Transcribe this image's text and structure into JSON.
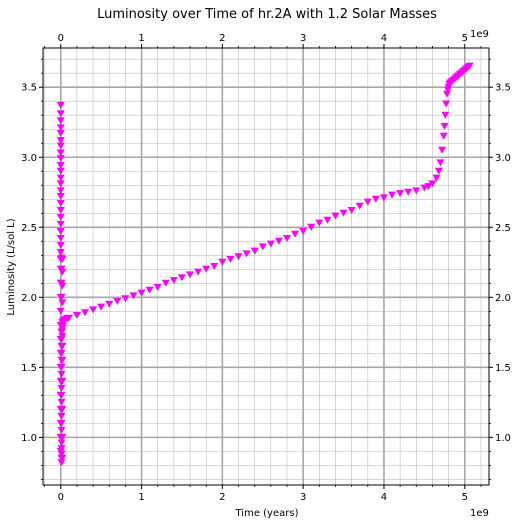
{
  "chart_data": {
    "type": "scatter",
    "title": "Luminosity over Time of hr.2A with 1.2 Solar Masses",
    "xlabel": "Time (years)",
    "ylabel": "Luminosity (L/sol L)",
    "x_offset_label": "1e9",
    "xlim": [
      -0.22,
      5.3
    ],
    "ylim": [
      0.66,
      3.78
    ],
    "x_ticks": [
      0,
      1,
      2,
      3,
      4,
      5
    ],
    "x_tick_labels": [
      "0",
      "1",
      "2",
      "3",
      "4",
      "5"
    ],
    "y_ticks": [
      1.0,
      1.5,
      2.0,
      2.5,
      3.0,
      3.5
    ],
    "y_tick_labels": [
      "1.0",
      "1.5",
      "2.0",
      "2.5",
      "3.0",
      "3.5"
    ],
    "grid": "major and minor",
    "ticks_on_all_sides": true,
    "marker": "triangle-down",
    "color": "#ff00ff",
    "series": [
      {
        "x": [
          0.0,
          0.0,
          0.0,
          0.0,
          0.0,
          0.0,
          0.0,
          0.0,
          0.0,
          0.0,
          0.0,
          0.0,
          0.0,
          0.0,
          0.0,
          0.0,
          0.0,
          0.0,
          0.0,
          0.0,
          0.0,
          0.0,
          0.0,
          0.0,
          0.0,
          0.0,
          0.0,
          0.0,
          0.0,
          0.0,
          0.0,
          0.0,
          0.0,
          0.0,
          0.0,
          0.0,
          0.0,
          0.0,
          0.01,
          0.01,
          0.01,
          0.01,
          0.01,
          0.01,
          0.01,
          0.01,
          0.01,
          0.01,
          0.01,
          0.01,
          0.01,
          0.01,
          0.01,
          0.01,
          0.01,
          0.01,
          0.01,
          0.01,
          0.01,
          0.01,
          0.01,
          0.01,
          0.01,
          0.02,
          0.02,
          0.02,
          0.02,
          0.02,
          0.02,
          0.02,
          0.02,
          0.02,
          0.02,
          0.02,
          0.02,
          0.02,
          0.02,
          0.02,
          0.02,
          0.03,
          0.03,
          0.03,
          0.04,
          0.05,
          0.06,
          0.08,
          0.1,
          0.2,
          0.3,
          0.4,
          0.5,
          0.6,
          0.7,
          0.8,
          0.9,
          1.0,
          1.1,
          1.2,
          1.3,
          1.4,
          1.5,
          1.6,
          1.7,
          1.8,
          1.9,
          2.0,
          2.1,
          2.2,
          2.3,
          2.4,
          2.5,
          2.6,
          2.7,
          2.8,
          2.9,
          3.0,
          3.1,
          3.2,
          3.3,
          3.4,
          3.5,
          3.6,
          3.7,
          3.8,
          3.9,
          4.0,
          4.1,
          4.2,
          4.3,
          4.4,
          4.5,
          4.55,
          4.6,
          4.65,
          4.68,
          4.7,
          4.72,
          4.74,
          4.75,
          4.76,
          4.77,
          4.78,
          4.79,
          4.8,
          4.81,
          4.82,
          4.84,
          4.86,
          4.88,
          4.9,
          4.92,
          4.94,
          4.96,
          4.98,
          5.0,
          5.02,
          5.04,
          5.06
        ],
        "y": [
          3.37,
          3.31,
          3.26,
          3.21,
          3.17,
          3.12,
          3.08,
          3.03,
          2.99,
          2.94,
          2.9,
          2.85,
          2.81,
          2.76,
          2.72,
          2.67,
          2.62,
          2.57,
          2.52,
          2.47,
          2.42,
          2.37,
          2.32,
          2.27,
          2.2,
          2.1,
          2.0,
          1.9,
          1.8,
          1.7,
          1.6,
          1.5,
          1.4,
          1.3,
          1.2,
          1.1,
          1.0,
          0.9,
          0.82,
          0.85,
          0.88,
          0.92,
          0.96,
          1.0,
          1.05,
          1.1,
          1.15,
          1.2,
          1.25,
          1.3,
          1.35,
          1.4,
          1.45,
          1.5,
          1.55,
          1.6,
          1.65,
          1.7,
          1.75,
          2.28,
          2.2,
          2.1,
          2.0,
          0.85,
          1.0,
          1.2,
          1.4,
          1.55,
          1.65,
          1.72,
          1.76,
          1.78,
          1.79,
          1.8,
          1.82,
          2.27,
          2.18,
          2.08,
          1.96,
          1.81,
          1.82,
          1.83,
          1.83,
          1.84,
          1.84,
          1.85,
          1.85,
          1.87,
          1.89,
          1.91,
          1.93,
          1.95,
          1.97,
          1.99,
          2.01,
          2.03,
          2.05,
          2.07,
          2.1,
          2.12,
          2.14,
          2.16,
          2.18,
          2.2,
          2.22,
          2.25,
          2.27,
          2.29,
          2.31,
          2.33,
          2.36,
          2.38,
          2.4,
          2.42,
          2.45,
          2.47,
          2.5,
          2.53,
          2.55,
          2.58,
          2.6,
          2.62,
          2.65,
          2.68,
          2.7,
          2.71,
          2.73,
          2.74,
          2.75,
          2.76,
          2.78,
          2.79,
          2.81,
          2.85,
          2.9,
          2.96,
          3.05,
          3.15,
          3.22,
          3.3,
          3.38,
          3.45,
          3.48,
          3.5,
          3.52,
          3.53,
          3.54,
          3.55,
          3.56,
          3.57,
          3.58,
          3.59,
          3.6,
          3.61,
          3.62,
          3.63,
          3.64,
          3.65
        ]
      }
    ]
  }
}
